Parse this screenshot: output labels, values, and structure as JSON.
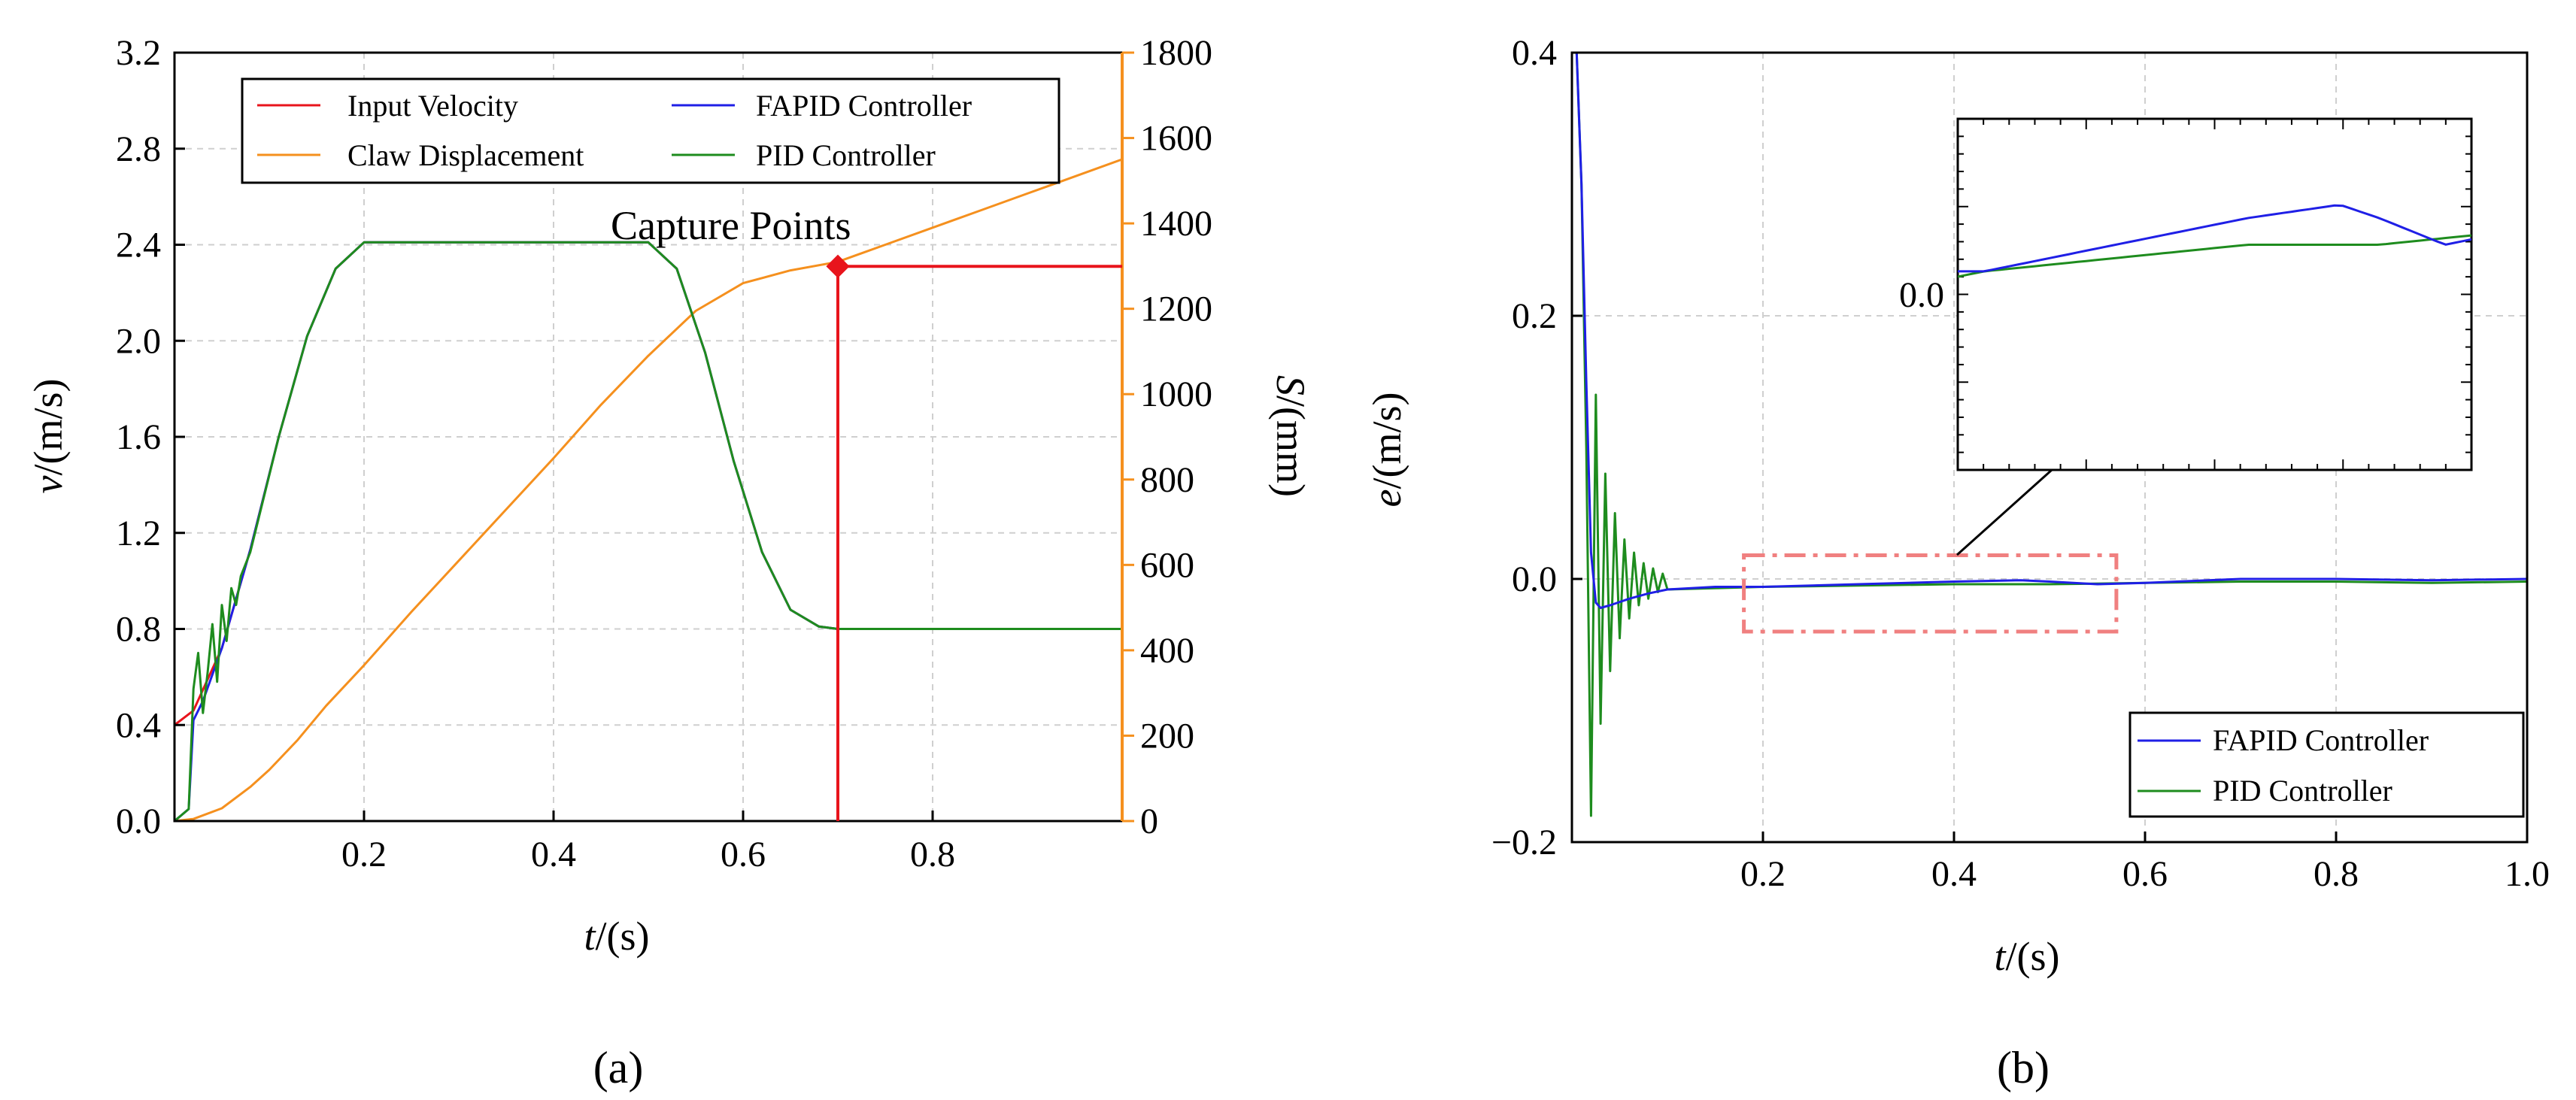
{
  "figure": {
    "panel_a_label": "(a)",
    "panel_b_label": "(b)"
  },
  "chart_data": [
    {
      "id": "panel-a",
      "type": "line",
      "xlabel": "t/(s)",
      "ylabel_left": "v/(m/s)",
      "ylabel_right": "S/(mm)",
      "xlim": [
        0.0,
        1.0
      ],
      "ylim_left": [
        0.0,
        3.2
      ],
      "ylim_right": [
        0,
        1800
      ],
      "x_ticks": [
        0.2,
        0.4,
        0.6,
        0.8
      ],
      "x_tick_labels": [
        "0.2",
        "0.4",
        "0.6",
        "0.8"
      ],
      "y_left_ticks": [
        0.0,
        0.4,
        0.8,
        1.2,
        1.6,
        2.0,
        2.4,
        2.8,
        3.2
      ],
      "y_left_tick_labels": [
        "0.0",
        "0.4",
        "0.8",
        "1.2",
        "1.6",
        "2.0",
        "2.4",
        "2.8",
        "3.2"
      ],
      "y_right_ticks": [
        0,
        200,
        400,
        600,
        800,
        1000,
        1200,
        1400,
        1600,
        1800
      ],
      "y_right_tick_labels": [
        "0",
        "200",
        "400",
        "600",
        "800",
        "1000",
        "1200",
        "1400",
        "1600",
        "1800"
      ],
      "grid": true,
      "legend_position": "top",
      "annotation": {
        "text": "Capture Points",
        "x": 0.7,
        "y": 2.31
      },
      "series": [
        {
          "name": "Input Velocity",
          "color": "#e8141c",
          "axis": "left",
          "x": [
            0.0,
            0.02,
            0.05,
            0.08,
            0.11,
            0.14,
            0.17,
            0.2,
            0.25,
            0.3,
            0.35,
            0.4,
            0.45,
            0.5,
            0.53,
            0.56,
            0.59,
            0.62,
            0.65,
            0.68,
            0.7,
            1.0
          ],
          "values": [
            0.4,
            0.46,
            0.72,
            1.13,
            1.6,
            2.02,
            2.3,
            2.41,
            2.41,
            2.41,
            2.41,
            2.41,
            2.41,
            2.41,
            2.3,
            1.95,
            1.5,
            1.12,
            0.88,
            0.81,
            0.8,
            0.8
          ]
        },
        {
          "name": "FAPID Controller",
          "color": "#1f1fe6",
          "axis": "left",
          "x": [
            0.0,
            0.015,
            0.02,
            0.03,
            0.05,
            0.08,
            0.11,
            0.14,
            0.17,
            0.2,
            0.25,
            0.3,
            0.35,
            0.4,
            0.45,
            0.5,
            0.53,
            0.56,
            0.59,
            0.62,
            0.65,
            0.68,
            0.7,
            1.0
          ],
          "values": [
            0.0,
            0.05,
            0.42,
            0.5,
            0.72,
            1.13,
            1.6,
            2.02,
            2.3,
            2.41,
            2.41,
            2.41,
            2.41,
            2.41,
            2.41,
            2.41,
            2.3,
            1.95,
            1.5,
            1.12,
            0.88,
            0.81,
            0.8,
            0.8
          ]
        },
        {
          "name": "Claw Displacement",
          "color": "#f5901e",
          "axis": "right",
          "x": [
            0.0,
            0.02,
            0.05,
            0.08,
            0.1,
            0.13,
            0.16,
            0.2,
            0.25,
            0.3,
            0.35,
            0.4,
            0.45,
            0.5,
            0.55,
            0.6,
            0.65,
            0.7,
            0.75,
            0.8,
            0.85,
            0.9,
            0.95,
            1.0
          ],
          "values": [
            0,
            5,
            30,
            80,
            120,
            190,
            270,
            365,
            490,
            610,
            730,
            850,
            975,
            1090,
            1195,
            1260,
            1290,
            1310,
            1350,
            1390,
            1430,
            1470,
            1510,
            1550
          ]
        },
        {
          "name": "PID Controller",
          "color": "#1e8c1e",
          "axis": "left",
          "x": [
            0.0,
            0.015,
            0.02,
            0.025,
            0.03,
            0.035,
            0.04,
            0.045,
            0.05,
            0.055,
            0.06,
            0.065,
            0.07,
            0.08,
            0.11,
            0.14,
            0.17,
            0.2,
            0.25,
            0.3,
            0.35,
            0.4,
            0.45,
            0.5,
            0.53,
            0.56,
            0.59,
            0.62,
            0.65,
            0.68,
            0.7,
            1.0
          ],
          "values": [
            0.0,
            0.05,
            0.55,
            0.7,
            0.45,
            0.62,
            0.82,
            0.58,
            0.9,
            0.75,
            0.97,
            0.9,
            1.02,
            1.12,
            1.6,
            2.02,
            2.3,
            2.41,
            2.41,
            2.41,
            2.41,
            2.41,
            2.41,
            2.41,
            2.3,
            1.95,
            1.5,
            1.12,
            0.88,
            0.81,
            0.8,
            0.8
          ]
        }
      ]
    },
    {
      "id": "panel-b",
      "type": "line",
      "xlabel": "t/(s)",
      "ylabel": "e/(m/s)",
      "xlim": [
        0.0,
        1.0
      ],
      "ylim": [
        -0.2,
        0.4
      ],
      "x_ticks": [
        0.2,
        0.4,
        0.6,
        0.8,
        1.0
      ],
      "x_tick_labels": [
        "0.2",
        "0.4",
        "0.6",
        "0.8",
        "1.0"
      ],
      "y_ticks": [
        -0.2,
        0.0,
        0.2,
        0.4
      ],
      "y_tick_labels": [
        "−0.2",
        "0.0",
        "0.2",
        "0.4"
      ],
      "grid": true,
      "legend_position": "bottom-right",
      "inset": {
        "x_range": [
          0.18,
          0.57
        ],
        "y_range": [
          -0.04,
          0.018
        ],
        "tick_label": "0.0"
      },
      "series": [
        {
          "name": "FAPID Controller",
          "color": "#1f1fe6",
          "x": [
            0.0,
            0.005,
            0.01,
            0.015,
            0.02,
            0.025,
            0.03,
            0.04,
            0.06,
            0.08,
            0.1,
            0.15,
            0.2,
            0.3,
            0.4,
            0.47,
            0.5,
            0.55,
            0.6,
            0.7,
            0.8,
            0.9,
            1.0
          ],
          "values": [
            0.4,
            0.4,
            0.3,
            0.15,
            0.02,
            -0.018,
            -0.022,
            -0.02,
            -0.015,
            -0.011,
            -0.008,
            -0.006,
            -0.006,
            -0.004,
            -0.002,
            -0.001,
            -0.002,
            -0.004,
            -0.003,
            0.0,
            0.0,
            -0.001,
            0.0
          ]
        },
        {
          "name": "PID Controller",
          "color": "#1e8c1e",
          "x": [
            0.0,
            0.005,
            0.01,
            0.015,
            0.02,
            0.025,
            0.03,
            0.035,
            0.04,
            0.045,
            0.05,
            0.055,
            0.06,
            0.065,
            0.07,
            0.075,
            0.08,
            0.085,
            0.09,
            0.095,
            0.1,
            0.15,
            0.2,
            0.3,
            0.4,
            0.5,
            0.6,
            0.7,
            0.8,
            0.9,
            1.0
          ],
          "values": [
            0.4,
            0.4,
            0.3,
            0.1,
            -0.18,
            0.14,
            -0.11,
            0.08,
            -0.07,
            0.05,
            -0.045,
            0.03,
            -0.03,
            0.02,
            -0.02,
            0.012,
            -0.015,
            0.008,
            -0.01,
            0.004,
            -0.008,
            -0.007,
            -0.006,
            -0.005,
            -0.004,
            -0.004,
            -0.003,
            -0.002,
            -0.002,
            -0.003,
            -0.002
          ]
        }
      ]
    }
  ]
}
